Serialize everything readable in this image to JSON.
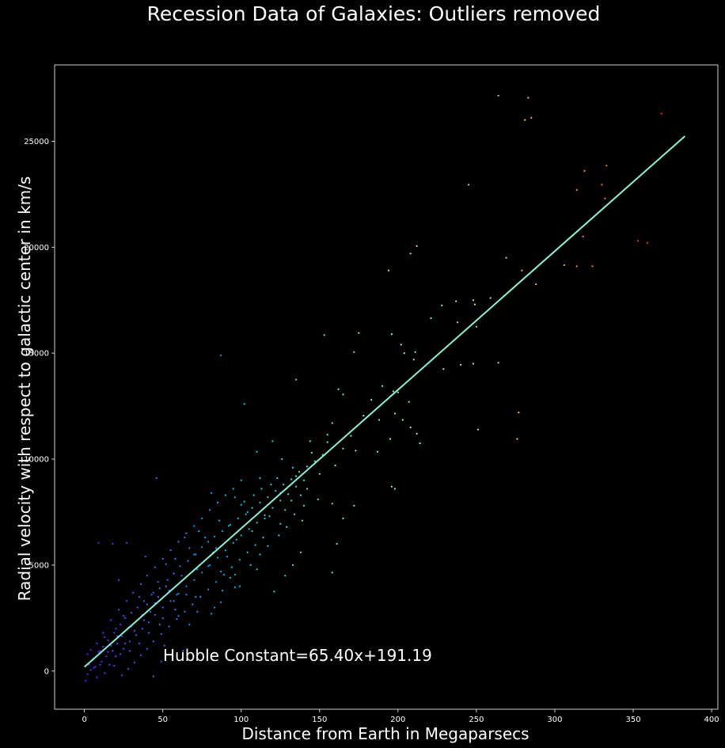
{
  "chart_data": {
    "type": "scatter",
    "title": "Recession Data of Galaxies: Outliers removed",
    "xlabel": "Distance from Earth in Megaparsecs",
    "ylabel": "Radial velocity with respect to galactic center in km/s",
    "xlim": [
      -19,
      404
    ],
    "ylim": [
      -1800,
      28600
    ],
    "xticks": [
      0,
      50,
      100,
      150,
      200,
      250,
      300,
      350,
      400
    ],
    "yticks": [
      0,
      5000,
      10000,
      15000,
      20000,
      25000
    ],
    "grid": false,
    "colormap": "rainbow",
    "annotation": "Hubble Constant=65.40x+191.19",
    "fit_line": {
      "slope": 65.4,
      "intercept": 191.19,
      "x_range": [
        0,
        383
      ],
      "color": "#8ff0d8"
    },
    "series": [
      {
        "points": [
          [
            264,
            27150
          ],
          [
            283,
            27050
          ],
          [
            281,
            26000
          ],
          [
            285,
            26100
          ],
          [
            368,
            26300
          ],
          [
            333,
            23850
          ],
          [
            319,
            23600
          ],
          [
            330,
            22950
          ],
          [
            314,
            22700
          ],
          [
            245,
            22950
          ],
          [
            332,
            22300
          ],
          [
            318,
            20500
          ],
          [
            212,
            20050
          ],
          [
            208,
            19700
          ],
          [
            269,
            19500
          ],
          [
            353,
            20300
          ],
          [
            359,
            20200
          ],
          [
            306,
            19150
          ],
          [
            314,
            19100
          ],
          [
            324,
            19100
          ],
          [
            194,
            18900
          ],
          [
            279,
            18900
          ],
          [
            288,
            18250
          ],
          [
            259,
            17600
          ],
          [
            248,
            17500
          ],
          [
            237,
            17450
          ],
          [
            249,
            17300
          ],
          [
            228,
            17250
          ],
          [
            221,
            16650
          ],
          [
            238,
            16450
          ],
          [
            250,
            16250
          ],
          [
            175,
            15950
          ],
          [
            196,
            15900
          ],
          [
            153,
            15850
          ],
          [
            202,
            15400
          ],
          [
            172,
            15050
          ],
          [
            211,
            15050
          ],
          [
            204,
            15000
          ],
          [
            210,
            14700
          ],
          [
            87,
            14900
          ],
          [
            240,
            14450
          ],
          [
            248,
            14500
          ],
          [
            264,
            14550
          ],
          [
            229,
            14250
          ],
          [
            135,
            13750
          ],
          [
            190,
            13450
          ],
          [
            197,
            13200
          ],
          [
            162,
            13300
          ],
          [
            165,
            13050
          ],
          [
            183,
            12800
          ],
          [
            200,
            13150
          ],
          [
            207,
            12700
          ],
          [
            277,
            12200
          ],
          [
            198,
            12150
          ],
          [
            178,
            12050
          ],
          [
            203,
            11850
          ],
          [
            208,
            11500
          ],
          [
            188,
            11850
          ],
          [
            212,
            11200
          ],
          [
            195,
            10950
          ],
          [
            214,
            10750
          ],
          [
            251,
            11400
          ],
          [
            276,
            10950
          ],
          [
            187,
            10350
          ],
          [
            173,
            10400
          ],
          [
            165,
            10500
          ],
          [
            158,
            11700
          ],
          [
            155,
            11150
          ],
          [
            170,
            11100
          ],
          [
            144,
            10850
          ],
          [
            120,
            10850
          ],
          [
            110,
            10350
          ],
          [
            196,
            8700
          ],
          [
            198,
            8600
          ],
          [
            102,
            12600
          ],
          [
            126,
            10000
          ],
          [
            135,
            9200
          ],
          [
            112,
            9100
          ],
          [
            119,
            8800
          ],
          [
            142,
            8600
          ],
          [
            125,
            8400
          ],
          [
            108,
            8300
          ],
          [
            132,
            8050
          ],
          [
            149,
            8100
          ],
          [
            158,
            7900
          ],
          [
            172,
            7800
          ],
          [
            165,
            7200
          ],
          [
            139,
            7100
          ],
          [
            125,
            6950
          ],
          [
            115,
            7200
          ],
          [
            104,
            7500
          ],
          [
            100,
            7850
          ],
          [
            96,
            8200
          ],
          [
            81,
            8400
          ],
          [
            92,
            6850
          ],
          [
            73,
            6600
          ],
          [
            64,
            6300
          ],
          [
            84,
            5800
          ],
          [
            70,
            5500
          ],
          [
            58,
            5300
          ],
          [
            52,
            5050
          ],
          [
            79,
            4950
          ],
          [
            87,
            4700
          ],
          [
            96,
            4550
          ],
          [
            110,
            4800
          ],
          [
            133,
            5000
          ],
          [
            138,
            5600
          ],
          [
            158,
            4650
          ],
          [
            161,
            6000
          ],
          [
            128,
            4500
          ],
          [
            121,
            3750
          ],
          [
            96,
            3950
          ],
          [
            87,
            3250
          ],
          [
            81,
            2700
          ],
          [
            71,
            3500
          ],
          [
            59,
            3600
          ],
          [
            46,
            9100
          ],
          [
            39,
            5400
          ],
          [
            27,
            6050
          ],
          [
            9,
            6050
          ],
          [
            18,
            6000
          ],
          [
            22,
            4300
          ],
          [
            47,
            4200
          ],
          [
            44,
            3700
          ],
          [
            40,
            3150
          ],
          [
            37,
            2650
          ],
          [
            33,
            2350
          ],
          [
            28,
            2050
          ],
          [
            24,
            1650
          ],
          [
            21,
            1300
          ],
          [
            18,
            950
          ],
          [
            14,
            700
          ],
          [
            11,
            450
          ],
          [
            7,
            200
          ],
          [
            4,
            50
          ],
          [
            2,
            -150
          ],
          [
            1,
            -450
          ],
          [
            3,
            300
          ],
          [
            6,
            600
          ],
          [
            9,
            900
          ],
          [
            12,
            1150
          ],
          [
            15,
            1450
          ],
          [
            19,
            1800
          ],
          [
            23,
            2200
          ],
          [
            26,
            2500
          ],
          [
            30,
            2750
          ],
          [
            34,
            3000
          ],
          [
            38,
            3300
          ],
          [
            43,
            3600
          ],
          [
            48,
            3900
          ],
          [
            53,
            4300
          ],
          [
            57,
            4600
          ],
          [
            61,
            4950
          ],
          [
            66,
            5200
          ],
          [
            71,
            5500
          ],
          [
            75,
            5850
          ],
          [
            79,
            6100
          ],
          [
            83,
            6350
          ],
          [
            88,
            6600
          ],
          [
            93,
            6900
          ],
          [
            98,
            7200
          ],
          [
            103,
            7400
          ],
          [
            107,
            7700
          ],
          [
            112,
            7950
          ],
          [
            117,
            8200
          ],
          [
            122,
            8500
          ],
          [
            127,
            8800
          ],
          [
            132,
            9050
          ],
          [
            137,
            9400
          ],
          [
            142,
            9650
          ],
          [
            147,
            9900
          ],
          [
            152,
            10200
          ],
          [
            16,
            300
          ],
          [
            20,
            700
          ],
          [
            25,
            1050
          ],
          [
            29,
            1400
          ],
          [
            33,
            1700
          ],
          [
            37,
            2000
          ],
          [
            41,
            2300
          ],
          [
            45,
            2650
          ],
          [
            50,
            3000
          ],
          [
            55,
            3300
          ],
          [
            60,
            3650
          ],
          [
            65,
            4000
          ],
          [
            70,
            4300
          ],
          [
            75,
            4650
          ],
          [
            80,
            5000
          ],
          [
            85,
            5350
          ],
          [
            90,
            5700
          ],
          [
            95,
            6050
          ],
          [
            100,
            6400
          ],
          [
            105,
            6700
          ],
          [
            110,
            7000
          ],
          [
            115,
            7350
          ],
          [
            120,
            7700
          ],
          [
            125,
            8050
          ],
          [
            130,
            8350
          ],
          [
            135,
            8700
          ],
          [
            140,
            9000
          ],
          [
            8,
            1300
          ],
          [
            12,
            1800
          ],
          [
            17,
            2400
          ],
          [
            22,
            2900
          ],
          [
            27,
            3300
          ],
          [
            31,
            3700
          ],
          [
            36,
            4100
          ],
          [
            40,
            4500
          ],
          [
            45,
            4900
          ],
          [
            50,
            5300
          ],
          [
            55,
            5700
          ],
          [
            60,
            6100
          ],
          [
            65,
            6500
          ],
          [
            70,
            6850
          ],
          [
            75,
            7200
          ],
          [
            80,
            7600
          ],
          [
            85,
            7950
          ],
          [
            90,
            8300
          ],
          [
            95,
            8600
          ],
          [
            100,
            9000
          ],
          [
            24,
            -200
          ],
          [
            28,
            100
          ],
          [
            32,
            400
          ],
          [
            36,
            750
          ],
          [
            40,
            1050
          ],
          [
            44,
            1400
          ],
          [
            49,
            1750
          ],
          [
            54,
            2100
          ],
          [
            59,
            2450
          ],
          [
            64,
            2800
          ],
          [
            69,
            3150
          ],
          [
            74,
            3500
          ],
          [
            79,
            3850
          ],
          [
            84,
            4200
          ],
          [
            89,
            4550
          ],
          [
            94,
            4900
          ],
          [
            99,
            5250
          ],
          [
            104,
            5600
          ],
          [
            109,
            5950
          ],
          [
            114,
            6300
          ],
          [
            5,
            500
          ],
          [
            10,
            950
          ],
          [
            13,
            1600
          ],
          [
            17,
            1200
          ],
          [
            20,
            2000
          ],
          [
            25,
            2600
          ],
          [
            30,
            2100
          ],
          [
            35,
            3500
          ],
          [
            42,
            2800
          ],
          [
            47,
            3500
          ],
          [
            52,
            4000
          ],
          [
            57,
            3300
          ],
          [
            62,
            4500
          ],
          [
            67,
            5800
          ],
          [
            72,
            4800
          ],
          [
            77,
            6300
          ],
          [
            82,
            5600
          ],
          [
            86,
            7100
          ],
          [
            91,
            5400
          ],
          [
            97,
            6200
          ],
          [
            102,
            8000
          ],
          [
            107,
            6600
          ],
          [
            113,
            8600
          ],
          [
            118,
            7300
          ],
          [
            123,
            9100
          ],
          [
            128,
            7600
          ],
          [
            133,
            9600
          ],
          [
            138,
            8300
          ],
          [
            145,
            10300
          ],
          [
            150,
            9300
          ],
          [
            155,
            10800
          ],
          [
            160,
            9700
          ],
          [
            44,
            -250
          ],
          [
            49,
            450
          ],
          [
            51,
            1200
          ],
          [
            48,
            2200
          ],
          [
            63,
            950
          ],
          [
            60,
            2600
          ],
          [
            65,
            3600
          ],
          [
            67,
            2200
          ],
          [
            72,
            2800
          ],
          [
            83,
            3000
          ],
          [
            88,
            3800
          ],
          [
            93,
            4400
          ],
          [
            99,
            4000
          ],
          [
            106,
            5000
          ],
          [
            112,
            5500
          ],
          [
            117,
            5900
          ],
          [
            124,
            6400
          ],
          [
            129,
            6800
          ],
          [
            134,
            7400
          ],
          [
            140,
            7800
          ],
          [
            2,
            800
          ],
          [
            4,
            1000
          ],
          [
            6,
            150
          ],
          [
            8,
            -300
          ],
          [
            10,
            300
          ],
          [
            13,
            -100
          ],
          [
            15,
            900
          ],
          [
            19,
            250
          ],
          [
            21,
            1650
          ],
          [
            23,
            800
          ],
          [
            26,
            1300
          ],
          [
            29,
            950
          ],
          [
            32,
            1900
          ],
          [
            35,
            1300
          ],
          [
            38,
            2400
          ],
          [
            41,
            1800
          ],
          [
            45,
            3200
          ],
          [
            50,
            2500
          ],
          [
            54,
            3800
          ],
          [
            58,
            2900
          ]
        ]
      }
    ]
  }
}
